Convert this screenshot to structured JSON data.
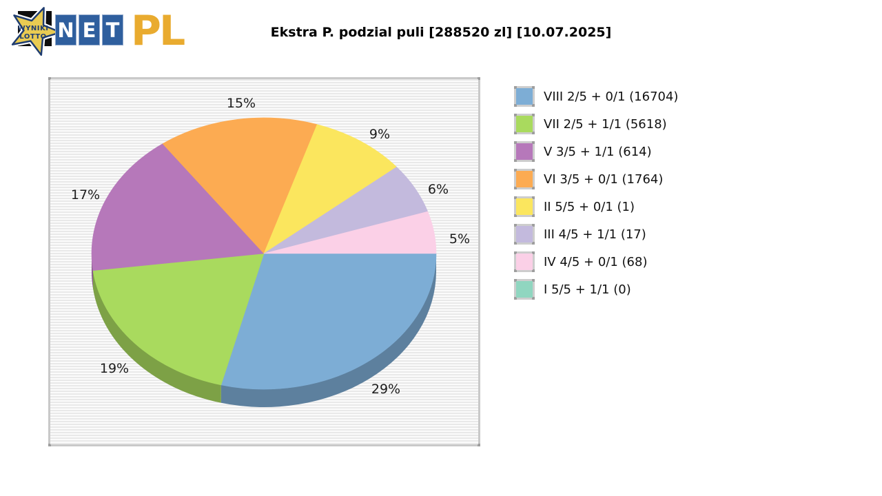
{
  "logo": {
    "star_text_line1": "WYNIKI",
    "star_text_line2": "LOTTO",
    "tiles": [
      "N",
      "E",
      "T"
    ],
    "suffix": "PL"
  },
  "header": {
    "title": "Ekstra P. podzial puli [288520 zl] [10.07.2025]"
  },
  "colors": {
    "logo_navy": "#1f3d70",
    "logo_star_gold": "#e9cb52",
    "logo_tile_blue": "#2f5f9e",
    "logo_pl_gold": "#e9ab2f",
    "plot_frame_gray": "#c9c9c9",
    "percent_label_color": "#1c1c1c"
  },
  "chart_data": {
    "type": "pie",
    "style": "3d",
    "title": "Ekstra P. podzial puli [288520 zl] [10.07.2025]",
    "direction": "clockwise",
    "start_angle_deg": 0,
    "legend_position": "right",
    "grid": "horizontal-stripes",
    "slices": [
      {
        "label": "VIII 2/5 + 0/1",
        "count": 16704,
        "pct": 29,
        "color": "#7dadd5",
        "label_xy": [
          487,
          450
        ]
      },
      {
        "label": "VII 2/5 + 1/1",
        "count": 5618,
        "pct": 19,
        "color": "#a9da5e",
        "label_xy": [
          93,
          420
        ]
      },
      {
        "label": "V 3/5 + 1/1",
        "count": 614,
        "pct": 17,
        "color": "#b678ba",
        "label_xy": [
          51,
          168
        ]
      },
      {
        "label": "VI 3/5 + 0/1",
        "count": 1764,
        "pct": 15,
        "color": "#fcab52",
        "label_xy": [
          277,
          35
        ]
      },
      {
        "label": "II 5/5 + 0/1",
        "count": 1,
        "pct": 9,
        "color": "#fbe65e",
        "label_xy": [
          478,
          80
        ]
      },
      {
        "label": "III 4/5 + 1/1",
        "count": 17,
        "pct": 6,
        "color": "#c3badd",
        "label_xy": [
          563,
          160
        ]
      },
      {
        "label": "IV 4/5 + 0/1",
        "count": 68,
        "pct": 5,
        "color": "#fbd0e7",
        "label_xy": [
          594,
          232
        ]
      },
      {
        "label": "I 5/5 + 1/1",
        "count": 0,
        "pct": 0,
        "color": "#90d6c0",
        "label_xy": null
      }
    ]
  }
}
